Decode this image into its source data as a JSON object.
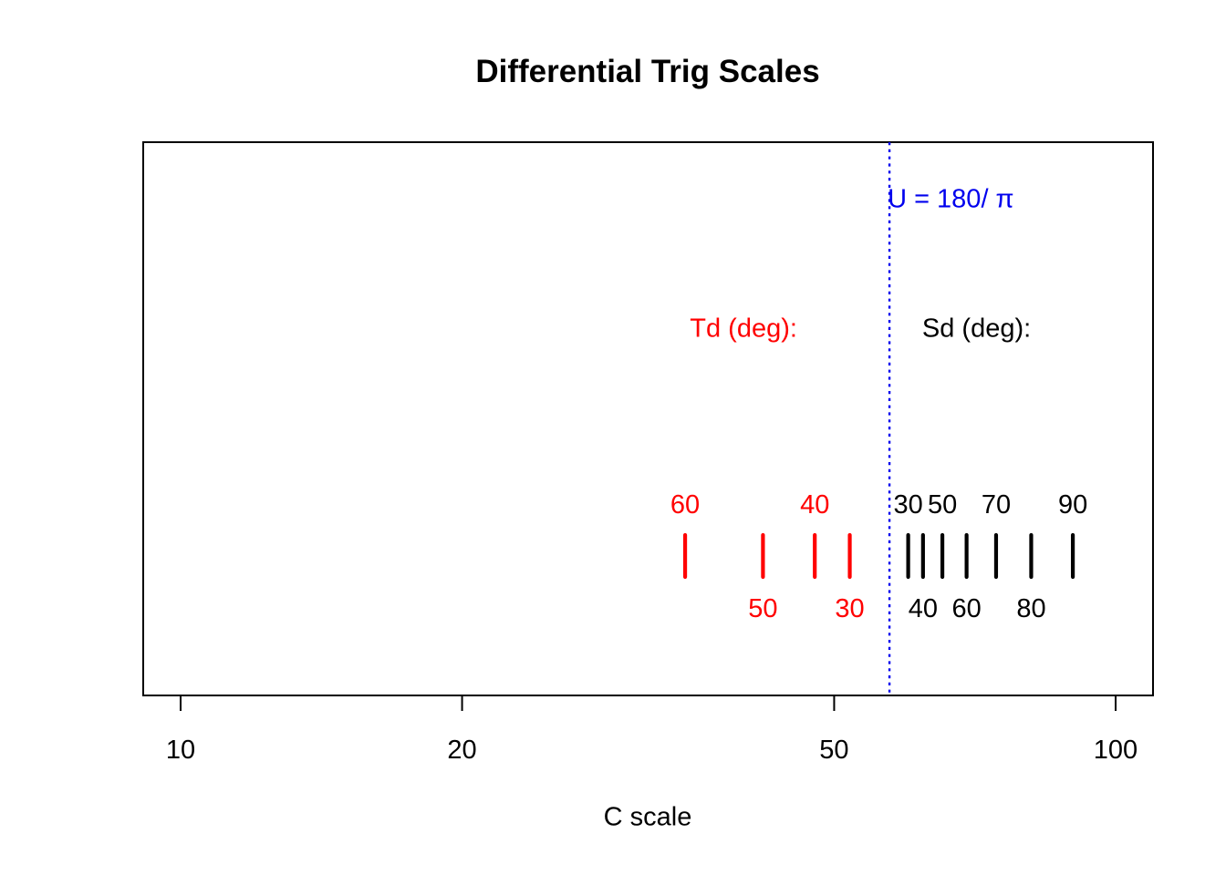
{
  "title": "Differential Trig Scales",
  "chart_data": {
    "type": "scatter",
    "variant": "slide-rule differential trig tick scales on a logarithmic axis",
    "title": "Differential Trig Scales",
    "xlabel": "C scale",
    "x_axis": {
      "scale": "log10",
      "tick_values": [
        10,
        20,
        50,
        100
      ],
      "tick_labels": [
        "10",
        "20",
        "50",
        "100"
      ],
      "xlim": [
        9.12,
        109.65
      ],
      "grid": false
    },
    "reference_line": {
      "label": "U = 180/ π",
      "c_value": 57.2958,
      "line_style": "dotted",
      "color": "#0000EE"
    },
    "series": [
      {
        "name": "Td (deg):",
        "color": "#FF0000",
        "name_anchor_c": 40,
        "points": [
          {
            "deg_label": "60",
            "c_value": 34.64,
            "label_side": "above"
          },
          {
            "deg_label": "50",
            "c_value": 41.96,
            "label_side": "below"
          },
          {
            "deg_label": "40",
            "c_value": 47.67,
            "label_side": "above"
          },
          {
            "deg_label": "30",
            "c_value": 51.96,
            "label_side": "below"
          }
        ]
      },
      {
        "name": "Sd (deg):",
        "color": "#000000",
        "name_anchor_c": 71,
        "points": [
          {
            "deg_label": "30",
            "c_value": 60.0,
            "label_side": "above"
          },
          {
            "deg_label": "40",
            "c_value": 62.23,
            "label_side": "below"
          },
          {
            "deg_label": "50",
            "c_value": 65.27,
            "label_side": "above"
          },
          {
            "deg_label": "60",
            "c_value": 69.28,
            "label_side": "below"
          },
          {
            "deg_label": "70",
            "c_value": 74.5,
            "label_side": "above"
          },
          {
            "deg_label": "80",
            "c_value": 81.23,
            "label_side": "below"
          },
          {
            "deg_label": "90",
            "c_value": 90.0,
            "label_side": "above"
          }
        ]
      }
    ],
    "colors": {
      "red": "#FF0000",
      "blue": "#0000EE",
      "black": "#000000",
      "background": "#FFFFFF"
    }
  }
}
